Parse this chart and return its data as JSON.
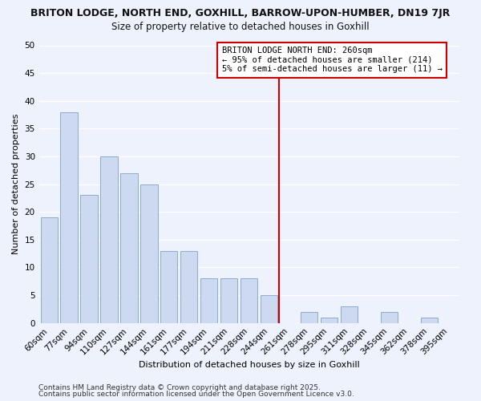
{
  "title": "BRITON LODGE, NORTH END, GOXHILL, BARROW-UPON-HUMBER, DN19 7JR",
  "subtitle": "Size of property relative to detached houses in Goxhill",
  "xlabel": "Distribution of detached houses by size in Goxhill",
  "ylabel": "Number of detached properties",
  "bar_labels": [
    "60sqm",
    "77sqm",
    "94sqm",
    "110sqm",
    "127sqm",
    "144sqm",
    "161sqm",
    "177sqm",
    "194sqm",
    "211sqm",
    "228sqm",
    "244sqm",
    "261sqm",
    "278sqm",
    "295sqm",
    "311sqm",
    "328sqm",
    "345sqm",
    "362sqm",
    "378sqm",
    "395sqm"
  ],
  "bar_values": [
    19,
    38,
    23,
    30,
    27,
    25,
    13,
    13,
    8,
    8,
    8,
    5,
    0,
    2,
    1,
    3,
    0,
    2,
    0,
    1,
    0
  ],
  "bar_color": "#ccd9f0",
  "bar_edge_color": "#8aabcf",
  "background_color": "#eef2fc",
  "grid_color": "#ffffff",
  "vline_color": "#cc0000",
  "vline_index": 12,
  "ylim": [
    0,
    50
  ],
  "yticks": [
    0,
    5,
    10,
    15,
    20,
    25,
    30,
    35,
    40,
    45,
    50
  ],
  "annotation_title": "BRITON LODGE NORTH END: 260sqm",
  "annotation_line1": "← 95% of detached houses are smaller (214)",
  "annotation_line2": "5% of semi-detached houses are larger (11) →",
  "footnote1": "Contains HM Land Registry data © Crown copyright and database right 2025.",
  "footnote2": "Contains public sector information licensed under the Open Government Licence v3.0.",
  "title_fontsize": 9.0,
  "subtitle_fontsize": 8.5,
  "axis_label_fontsize": 8.0,
  "tick_fontsize": 7.5,
  "annotation_fontsize": 7.5,
  "footnote_fontsize": 6.5
}
